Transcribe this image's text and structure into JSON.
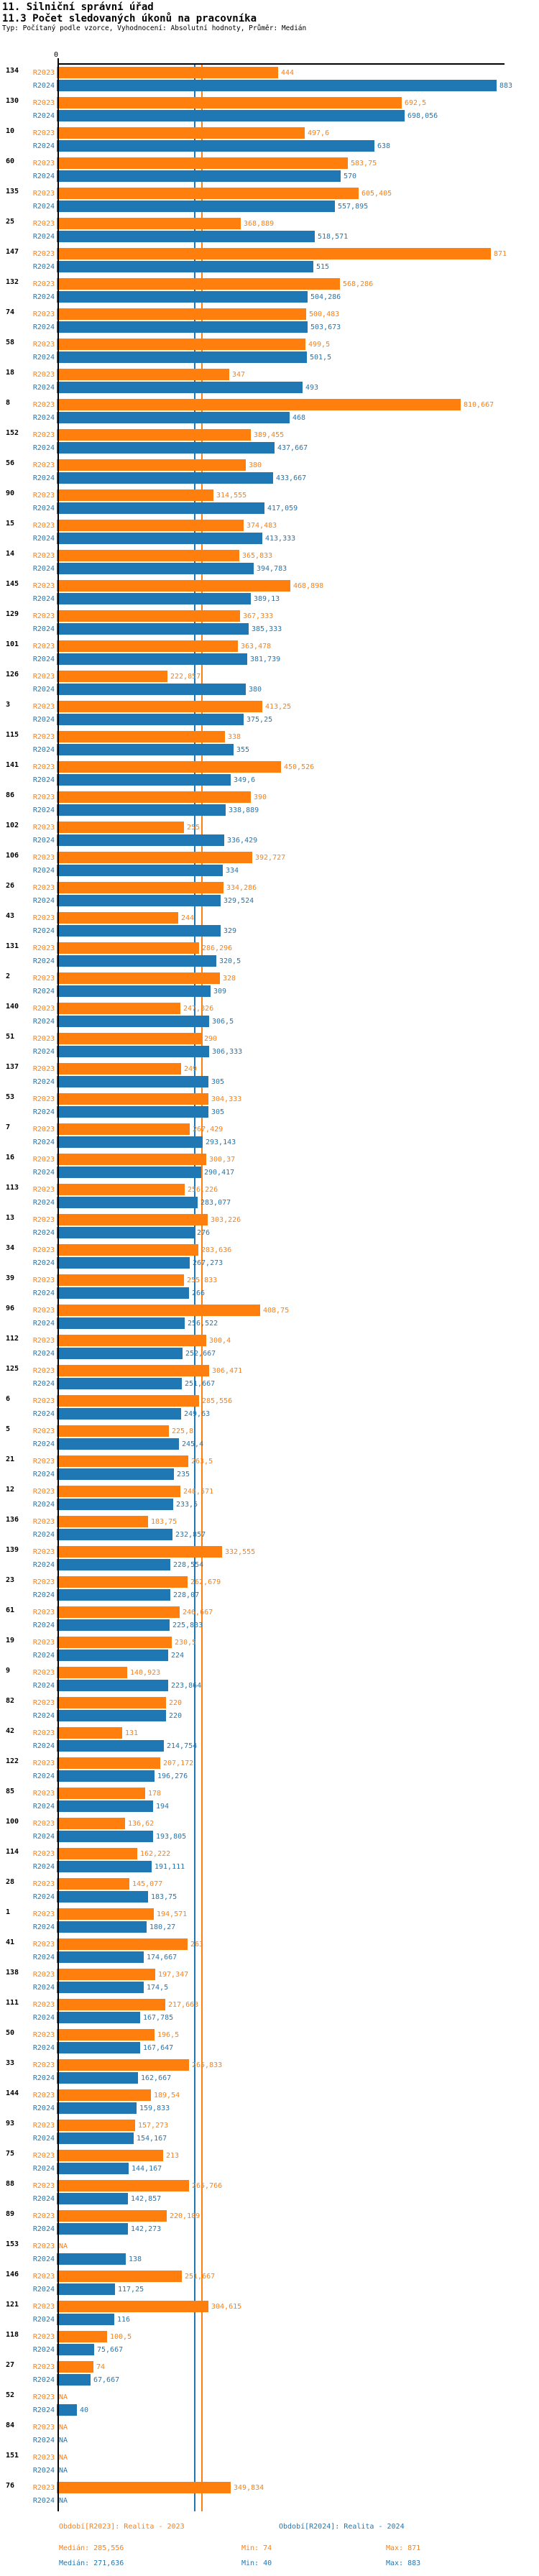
{
  "title": "11. Silniční správní úřad",
  "subtitle": "11.3 Počet sledovaných úkonů na pracovníka",
  "type_line": "Typ: Počítaný podle vzorce, Vyhodnocení: Absolutní hodnoty, Průměr: Medián",
  "colors": {
    "r2023": "#ff7f0e",
    "r2024": "#1f77b4",
    "axis": "#000000"
  },
  "axis": {
    "zero_label": "0"
  },
  "series_labels": {
    "r2023": "R2023",
    "r2024": "R2024"
  },
  "na_label": "NA",
  "chart_data": {
    "type": "bar",
    "orientation": "horizontal",
    "series": [
      "R2023",
      "R2024"
    ],
    "value_format": "czech decimal comma",
    "x_origin": 0,
    "median_lines": {
      "R2023": 285.556,
      "R2024": 271.636
    },
    "rows": [
      {
        "id": "134",
        "r23": "444",
        "r24": "883"
      },
      {
        "id": "130",
        "r23": "692,5",
        "r24": "698,056"
      },
      {
        "id": "10",
        "r23": "497,6",
        "r24": "638"
      },
      {
        "id": "60",
        "r23": "583,75",
        "r24": "570"
      },
      {
        "id": "135",
        "r23": "605,405",
        "r24": "557,895"
      },
      {
        "id": "25",
        "r23": "368,889",
        "r24": "518,571"
      },
      {
        "id": "147",
        "r23": "871",
        "r24": "515"
      },
      {
        "id": "132",
        "r23": "568,286",
        "r24": "504,286"
      },
      {
        "id": "74",
        "r23": "500,483",
        "r24": "503,673"
      },
      {
        "id": "58",
        "r23": "499,5",
        "r24": "501,5"
      },
      {
        "id": "18",
        "r23": "347",
        "r24": "493"
      },
      {
        "id": "8",
        "r23": "810,667",
        "r24": "468"
      },
      {
        "id": "152",
        "r23": "389,455",
        "r24": "437,667"
      },
      {
        "id": "56",
        "r23": "380",
        "r24": "433,667"
      },
      {
        "id": "90",
        "r23": "314,555",
        "r24": "417,059"
      },
      {
        "id": "15",
        "r23": "374,483",
        "r24": "413,333"
      },
      {
        "id": "14",
        "r23": "365,833",
        "r24": "394,783"
      },
      {
        "id": "145",
        "r23": "468,898",
        "r24": "389,13"
      },
      {
        "id": "129",
        "r23": "367,333",
        "r24": "385,333"
      },
      {
        "id": "101",
        "r23": "363,478",
        "r24": "381,739"
      },
      {
        "id": "126",
        "r23": "222,857",
        "r24": "380"
      },
      {
        "id": "3",
        "r23": "413,25",
        "r24": "375,25"
      },
      {
        "id": "115",
        "r23": "338",
        "r24": "355"
      },
      {
        "id": "141",
        "r23": "450,526",
        "r24": "349,6"
      },
      {
        "id": "86",
        "r23": "390",
        "r24": "338,889"
      },
      {
        "id": "102",
        "r23": "255",
        "r24": "336,429"
      },
      {
        "id": "106",
        "r23": "392,727",
        "r24": "334"
      },
      {
        "id": "26",
        "r23": "334,286",
        "r24": "329,524"
      },
      {
        "id": "43",
        "r23": "244",
        "r24": "329"
      },
      {
        "id": "131",
        "r23": "286,296",
        "r24": "320,5"
      },
      {
        "id": "2",
        "r23": "328",
        "r24": "309"
      },
      {
        "id": "140",
        "r23": "247,826",
        "r24": "306,5"
      },
      {
        "id": "51",
        "r23": "290",
        "r24": "306,333"
      },
      {
        "id": "137",
        "r23": "249",
        "r24": "305"
      },
      {
        "id": "53",
        "r23": "304,333",
        "r24": "305"
      },
      {
        "id": "7",
        "r23": "267,429",
        "r24": "293,143"
      },
      {
        "id": "16",
        "r23": "300,37",
        "r24": "290,417"
      },
      {
        "id": "113",
        "r23": "256,226",
        "r24": "283,077"
      },
      {
        "id": "13",
        "r23": "303,226",
        "r24": "276"
      },
      {
        "id": "34",
        "r23": "283,636",
        "r24": "267,273"
      },
      {
        "id": "39",
        "r23": "255,833",
        "r24": "266"
      },
      {
        "id": "96",
        "r23": "408,75",
        "r24": "256,522"
      },
      {
        "id": "112",
        "r23": "300,4",
        "r24": "252,667"
      },
      {
        "id": "125",
        "r23": "306,471",
        "r24": "251,667"
      },
      {
        "id": "6",
        "r23": "285,556",
        "r24": "249,63"
      },
      {
        "id": "5",
        "r23": "225,8",
        "r24": "245,4"
      },
      {
        "id": "21",
        "r23": "263,5",
        "r24": "235"
      },
      {
        "id": "12",
        "r23": "248,571",
        "r24": "233,5"
      },
      {
        "id": "136",
        "r23": "183,75",
        "r24": "232,857"
      },
      {
        "id": "139",
        "r23": "332,555",
        "r24": "228,554"
      },
      {
        "id": "23",
        "r23": "262,679",
        "r24": "228,07"
      },
      {
        "id": "61",
        "r23": "246,667",
        "r24": "225,833"
      },
      {
        "id": "19",
        "r23": "230,5",
        "r24": "224"
      },
      {
        "id": "9",
        "r23": "140,923",
        "r24": "223,864"
      },
      {
        "id": "82",
        "r23": "220",
        "r24": "220"
      },
      {
        "id": "42",
        "r23": "131",
        "r24": "214,754"
      },
      {
        "id": "122",
        "r23": "207,172",
        "r24": "196,276"
      },
      {
        "id": "85",
        "r23": "178",
        "r24": "194"
      },
      {
        "id": "100",
        "r23": "136,62",
        "r24": "193,805"
      },
      {
        "id": "114",
        "r23": "162,222",
        "r24": "191,111"
      },
      {
        "id": "28",
        "r23": "145,077",
        "r24": "183,75"
      },
      {
        "id": "1",
        "r23": "194,571",
        "r24": "180,27"
      },
      {
        "id": "41",
        "r23": "263",
        "r24": "174,667"
      },
      {
        "id": "138",
        "r23": "197,347",
        "r24": "174,5"
      },
      {
        "id": "111",
        "r23": "217,663",
        "r24": "167,785"
      },
      {
        "id": "50",
        "r23": "196,5",
        "r24": "167,647"
      },
      {
        "id": "33",
        "r23": "265,833",
        "r24": "162,667"
      },
      {
        "id": "144",
        "r23": "189,54",
        "r24": "159,833"
      },
      {
        "id": "93",
        "r23": "157,273",
        "r24": "154,167"
      },
      {
        "id": "75",
        "r23": "213",
        "r24": "144,167"
      },
      {
        "id": "88",
        "r23": "265,766",
        "r24": "142,857"
      },
      {
        "id": "89",
        "r23": "220,189",
        "r24": "142,273"
      },
      {
        "id": "153",
        "r23": "NA",
        "r24": "138"
      },
      {
        "id": "146",
        "r23": "251,667",
        "r24": "117,25"
      },
      {
        "id": "121",
        "r23": "304,615",
        "r24": "116"
      },
      {
        "id": "118",
        "r23": "100,5",
        "r24": "75,667"
      },
      {
        "id": "27",
        "r23": "74",
        "r24": "67,667"
      },
      {
        "id": "52",
        "r23": "NA",
        "r24": "40"
      },
      {
        "id": "84",
        "r23": "NA",
        "r24": "NA"
      },
      {
        "id": "151",
        "r23": "NA",
        "r24": "NA"
      },
      {
        "id": "76",
        "r23": "349,834",
        "r24": "NA"
      }
    ]
  },
  "footer": {
    "legend_r2023": "Období[R2023]: Realita - 2023",
    "legend_r2024": "Období[R2024]: Realita - 2024",
    "stats_r2023": {
      "median": "Medián: 285,556",
      "min": "Min: 74",
      "max": "Max: 871"
    },
    "stats_r2024": {
      "median": "Medián: 271,636",
      "min": "Min: 40",
      "max": "Max: 883"
    }
  }
}
